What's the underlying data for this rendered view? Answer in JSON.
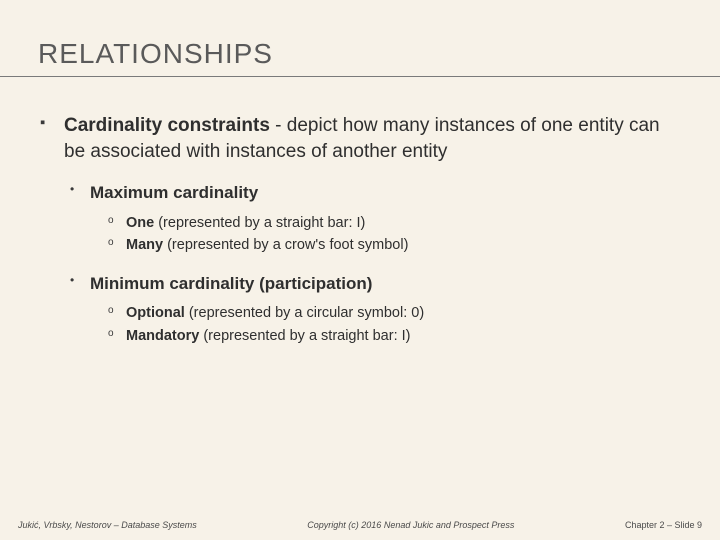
{
  "colors": {
    "background": "#f7f2e8",
    "title_text": "#5a5a5a",
    "body_text": "#2f2f2f",
    "rule": "#7a7a7a",
    "footer_text": "#4a4a4a"
  },
  "typography": {
    "title_fontsize": 28,
    "body_fontsize": 19,
    "sub_fontsize": 17,
    "subsub_fontsize": 14.5,
    "footer_fontsize": 9
  },
  "title": "RELATIONSHIPS",
  "main": {
    "lead": "Cardinality constraints",
    "rest": " - depict how many instances of one entity can be associated with instances of another entity"
  },
  "subs": [
    {
      "label": "Maximum cardinality",
      "items": [
        {
          "term": "One",
          "desc": " (represented by a straight bar: I)"
        },
        {
          "term": "Many",
          "desc": " (represented by a crow's foot symbol)"
        }
      ]
    },
    {
      "label": "Minimum cardinality (participation)",
      "items": [
        {
          "term": "Optional",
          "desc": " (represented by a circular symbol: 0)"
        },
        {
          "term": "Mandatory",
          "desc": " (represented by a straight bar: I)"
        }
      ]
    }
  ],
  "footer": {
    "left": "Jukić, Vrbsky, Nestorov – Database Systems",
    "center": "Copyright (c) 2016 Nenad Jukic and Prospect Press",
    "right": "Chapter 2 – Slide 9"
  }
}
